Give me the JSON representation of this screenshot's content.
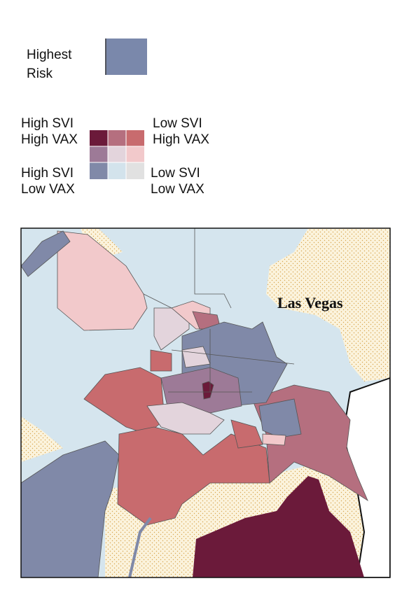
{
  "legend": {
    "highest_risk": [
      "Highest",
      "Risk"
    ],
    "labels": {
      "high_svi_high_vax": [
        "High SVI",
        "High VAX"
      ],
      "low_svi_high_vax": [
        "Low SVI",
        "High VAX"
      ],
      "high_svi_low_vax": [
        "High SVI",
        "Low VAX"
      ],
      "low_svi_low_vax": [
        "Low SVI",
        "Low VAX"
      ]
    }
  },
  "map": {
    "city_label": "Las Vegas"
  }
}
